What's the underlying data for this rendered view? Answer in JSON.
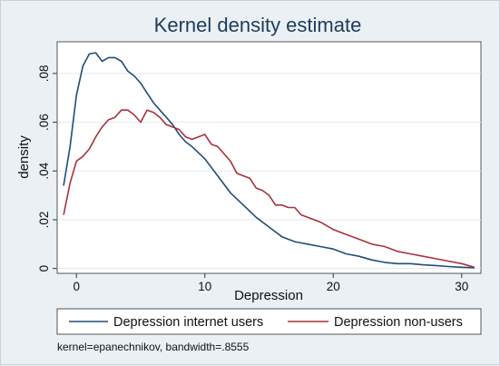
{
  "chart_data": {
    "type": "line",
    "title": "Kernel density estimate",
    "xlabel": "Depression",
    "ylabel": "density",
    "xlim": [
      -1.5,
      31.5
    ],
    "ylim": [
      -0.002,
      0.093
    ],
    "xticks": [
      0,
      10,
      20,
      30
    ],
    "yticks": [
      0,
      0.02,
      0.04,
      0.06,
      0.08
    ],
    "ytick_labels": [
      "0",
      ".02",
      ".04",
      ".06",
      ".08"
    ],
    "grid": true,
    "legend_position": "bottom",
    "note": "kernel=epanechnikov, bandwidth=.8555",
    "series": [
      {
        "name": "Depression internet users",
        "color": "#1f4e79",
        "x": [
          -1,
          -0.5,
          0,
          0.5,
          1,
          1.5,
          2,
          2.5,
          3,
          3.5,
          4,
          4.5,
          5,
          5.5,
          6,
          6.5,
          7,
          7.5,
          8,
          8.5,
          9,
          10,
          11,
          12,
          13,
          14,
          15,
          16,
          17,
          18,
          19,
          20,
          21,
          22,
          23,
          24,
          25,
          26,
          27,
          28,
          29,
          30,
          31
        ],
        "y": [
          0.034,
          0.05,
          0.071,
          0.083,
          0.088,
          0.0885,
          0.085,
          0.0865,
          0.0865,
          0.085,
          0.081,
          0.079,
          0.076,
          0.072,
          0.068,
          0.065,
          0.062,
          0.059,
          0.055,
          0.052,
          0.05,
          0.045,
          0.038,
          0.031,
          0.026,
          0.021,
          0.017,
          0.013,
          0.011,
          0.01,
          0.009,
          0.008,
          0.006,
          0.005,
          0.0035,
          0.0025,
          0.002,
          0.002,
          0.0015,
          0.0012,
          0.0008,
          0.0005,
          0.0003
        ]
      },
      {
        "name": "Depression non-users",
        "color": "#a8323a",
        "x": [
          -1,
          -0.5,
          0,
          0.5,
          1,
          1.5,
          2,
          2.5,
          3,
          3.5,
          4,
          4.5,
          5,
          5.5,
          6,
          6.5,
          7,
          7.5,
          8,
          8.5,
          9,
          9.5,
          10,
          10.5,
          11,
          11.5,
          12,
          12.5,
          13,
          13.5,
          14,
          14.5,
          15,
          15.5,
          16,
          16.5,
          17,
          17.5,
          18,
          18.5,
          19,
          20,
          21,
          22,
          23,
          24,
          25,
          26,
          27,
          28,
          29,
          30,
          31
        ],
        "y": [
          0.022,
          0.035,
          0.044,
          0.046,
          0.049,
          0.054,
          0.058,
          0.061,
          0.062,
          0.065,
          0.065,
          0.063,
          0.06,
          0.065,
          0.064,
          0.062,
          0.059,
          0.058,
          0.057,
          0.054,
          0.053,
          0.054,
          0.055,
          0.051,
          0.05,
          0.047,
          0.044,
          0.039,
          0.038,
          0.037,
          0.033,
          0.032,
          0.03,
          0.026,
          0.026,
          0.025,
          0.025,
          0.022,
          0.021,
          0.02,
          0.019,
          0.016,
          0.014,
          0.012,
          0.01,
          0.009,
          0.007,
          0.006,
          0.005,
          0.004,
          0.003,
          0.002,
          0.0005
        ]
      }
    ]
  }
}
